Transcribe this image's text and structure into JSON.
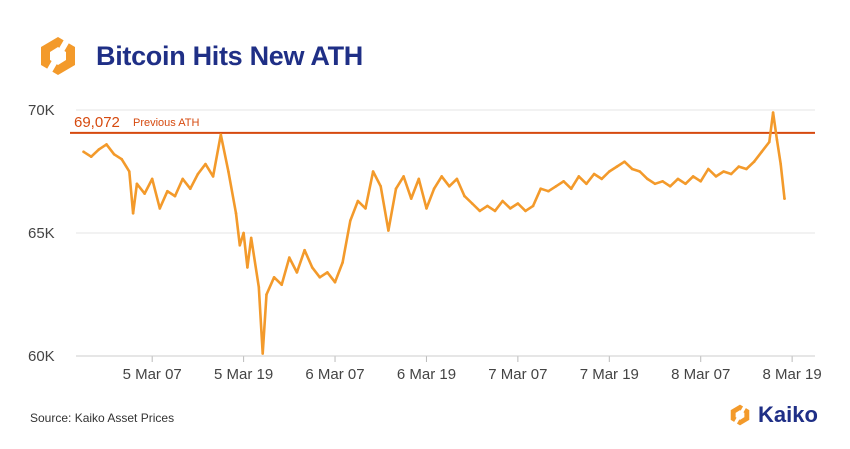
{
  "header": {
    "title": "Bitcoin Hits New ATH",
    "logo_icon": "kaiko-hexagon-icon"
  },
  "footer": {
    "source": "Source: Kaiko Asset Prices",
    "brand": "Kaiko"
  },
  "colors": {
    "line": "#f39a2b",
    "ath_line": "#d64a0f",
    "title": "#1f2f86",
    "logo_orange": "#f39a2b",
    "grid": "#e6e6e6"
  },
  "chart_data": {
    "type": "line",
    "title": "Bitcoin Hits New ATH",
    "xlabel": "",
    "ylabel": "",
    "ylim": [
      60000,
      70000
    ],
    "y_ticks": [
      {
        "value": 60000,
        "label": "60K"
      },
      {
        "value": 65000,
        "label": "65K"
      },
      {
        "value": 70000,
        "label": "70K"
      }
    ],
    "xlim": [
      "2024-03-04T21:00",
      "2024-03-08T22:00"
    ],
    "x_ticks": [
      {
        "value": "2024-03-05T07:00",
        "label": "5 Mar 07"
      },
      {
        "value": "2024-03-05T19:00",
        "label": "5 Mar 19"
      },
      {
        "value": "2024-03-06T07:00",
        "label": "6 Mar 07"
      },
      {
        "value": "2024-03-06T19:00",
        "label": "6 Mar 19"
      },
      {
        "value": "2024-03-07T07:00",
        "label": "7 Mar 07"
      },
      {
        "value": "2024-03-07T19:00",
        "label": "7 Mar 19"
      },
      {
        "value": "2024-03-08T07:00",
        "label": "8 Mar 07"
      },
      {
        "value": "2024-03-08T19:00",
        "label": "8 Mar 19"
      }
    ],
    "reference_line": {
      "value": 69072,
      "label_value": "69,072",
      "label_text": "Previous ATH"
    },
    "grid": true,
    "series": [
      {
        "values": [
          [
            "2024-03-04T22:00",
            68300
          ],
          [
            "2024-03-04T23:00",
            68100
          ],
          [
            "2024-03-05T00:00",
            68400
          ],
          [
            "2024-03-05T01:00",
            68600
          ],
          [
            "2024-03-05T02:00",
            68200
          ],
          [
            "2024-03-05T03:00",
            68000
          ],
          [
            "2024-03-05T04:00",
            67500
          ],
          [
            "2024-03-05T04:30",
            65800
          ],
          [
            "2024-03-05T05:00",
            67000
          ],
          [
            "2024-03-05T06:00",
            66600
          ],
          [
            "2024-03-05T07:00",
            67200
          ],
          [
            "2024-03-05T08:00",
            66000
          ],
          [
            "2024-03-05T09:00",
            66700
          ],
          [
            "2024-03-05T10:00",
            66500
          ],
          [
            "2024-03-05T11:00",
            67200
          ],
          [
            "2024-03-05T12:00",
            66800
          ],
          [
            "2024-03-05T13:00",
            67400
          ],
          [
            "2024-03-05T14:00",
            67800
          ],
          [
            "2024-03-05T15:00",
            67300
          ],
          [
            "2024-03-05T16:00",
            69000
          ],
          [
            "2024-03-05T17:00",
            67500
          ],
          [
            "2024-03-05T18:00",
            65800
          ],
          [
            "2024-03-05T18:30",
            64500
          ],
          [
            "2024-03-05T19:00",
            65000
          ],
          [
            "2024-03-05T19:30",
            63600
          ],
          [
            "2024-03-05T20:00",
            64800
          ],
          [
            "2024-03-05T21:00",
            62800
          ],
          [
            "2024-03-05T21:30",
            60100
          ],
          [
            "2024-03-05T22:00",
            62500
          ],
          [
            "2024-03-05T23:00",
            63200
          ],
          [
            "2024-03-06T00:00",
            62900
          ],
          [
            "2024-03-06T01:00",
            64000
          ],
          [
            "2024-03-06T02:00",
            63400
          ],
          [
            "2024-03-06T03:00",
            64300
          ],
          [
            "2024-03-06T04:00",
            63600
          ],
          [
            "2024-03-06T05:00",
            63200
          ],
          [
            "2024-03-06T06:00",
            63400
          ],
          [
            "2024-03-06T07:00",
            63000
          ],
          [
            "2024-03-06T08:00",
            63800
          ],
          [
            "2024-03-06T09:00",
            65500
          ],
          [
            "2024-03-06T10:00",
            66300
          ],
          [
            "2024-03-06T11:00",
            66000
          ],
          [
            "2024-03-06T12:00",
            67500
          ],
          [
            "2024-03-06T13:00",
            66900
          ],
          [
            "2024-03-06T14:00",
            65100
          ],
          [
            "2024-03-06T15:00",
            66800
          ],
          [
            "2024-03-06T16:00",
            67300
          ],
          [
            "2024-03-06T17:00",
            66400
          ],
          [
            "2024-03-06T18:00",
            67200
          ],
          [
            "2024-03-06T19:00",
            66000
          ],
          [
            "2024-03-06T20:00",
            66800
          ],
          [
            "2024-03-06T21:00",
            67300
          ],
          [
            "2024-03-06T22:00",
            66900
          ],
          [
            "2024-03-06T23:00",
            67200
          ],
          [
            "2024-03-07T00:00",
            66500
          ],
          [
            "2024-03-07T01:00",
            66200
          ],
          [
            "2024-03-07T02:00",
            65900
          ],
          [
            "2024-03-07T03:00",
            66100
          ],
          [
            "2024-03-07T04:00",
            65900
          ],
          [
            "2024-03-07T05:00",
            66300
          ],
          [
            "2024-03-07T06:00",
            66000
          ],
          [
            "2024-03-07T07:00",
            66200
          ],
          [
            "2024-03-07T08:00",
            65900
          ],
          [
            "2024-03-07T09:00",
            66100
          ],
          [
            "2024-03-07T10:00",
            66800
          ],
          [
            "2024-03-07T11:00",
            66700
          ],
          [
            "2024-03-07T12:00",
            66900
          ],
          [
            "2024-03-07T13:00",
            67100
          ],
          [
            "2024-03-07T14:00",
            66800
          ],
          [
            "2024-03-07T15:00",
            67300
          ],
          [
            "2024-03-07T16:00",
            67000
          ],
          [
            "2024-03-07T17:00",
            67400
          ],
          [
            "2024-03-07T18:00",
            67200
          ],
          [
            "2024-03-07T19:00",
            67500
          ],
          [
            "2024-03-07T20:00",
            67700
          ],
          [
            "2024-03-07T21:00",
            67900
          ],
          [
            "2024-03-07T22:00",
            67600
          ],
          [
            "2024-03-07T23:00",
            67500
          ],
          [
            "2024-03-08T00:00",
            67200
          ],
          [
            "2024-03-08T01:00",
            67000
          ],
          [
            "2024-03-08T02:00",
            67100
          ],
          [
            "2024-03-08T03:00",
            66900
          ],
          [
            "2024-03-08T04:00",
            67200
          ],
          [
            "2024-03-08T05:00",
            67000
          ],
          [
            "2024-03-08T06:00",
            67300
          ],
          [
            "2024-03-08T07:00",
            67100
          ],
          [
            "2024-03-08T08:00",
            67600
          ],
          [
            "2024-03-08T09:00",
            67300
          ],
          [
            "2024-03-08T10:00",
            67500
          ],
          [
            "2024-03-08T11:00",
            67400
          ],
          [
            "2024-03-08T12:00",
            67700
          ],
          [
            "2024-03-08T13:00",
            67600
          ],
          [
            "2024-03-08T14:00",
            67900
          ],
          [
            "2024-03-08T15:00",
            68300
          ],
          [
            "2024-03-08T16:00",
            68700
          ],
          [
            "2024-03-08T16:30",
            69900
          ],
          [
            "2024-03-08T17:00",
            68800
          ],
          [
            "2024-03-08T17:30",
            67800
          ],
          [
            "2024-03-08T18:00",
            66400
          ]
        ]
      }
    ]
  }
}
